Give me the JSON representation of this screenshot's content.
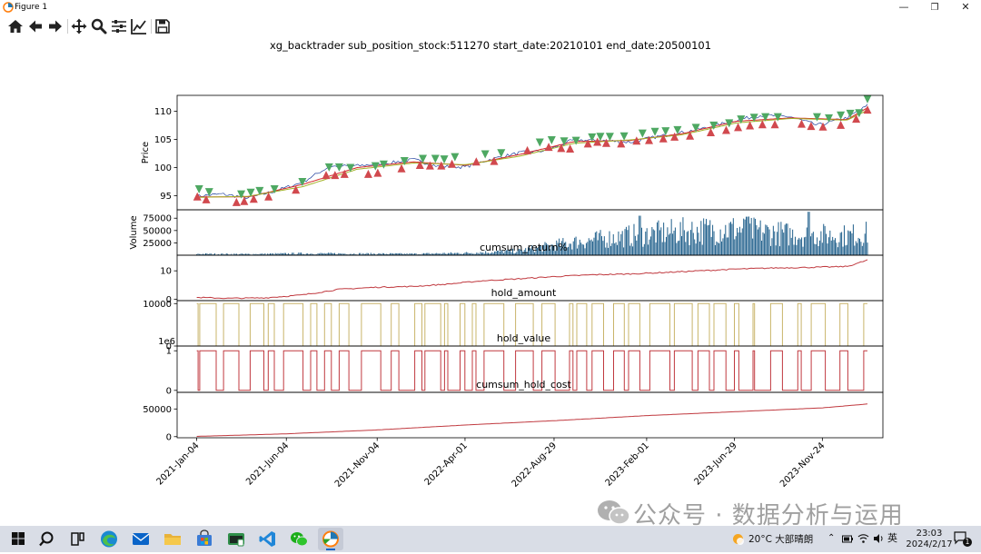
{
  "window": {
    "title": "Figure 1",
    "controls": [
      "minimize-icon",
      "restore-icon",
      "close-icon"
    ]
  },
  "toolbar": {
    "buttons": [
      {
        "name": "home-icon",
        "tooltip": "Reset original view"
      },
      {
        "name": "back-icon",
        "tooltip": "Back to previous view"
      },
      {
        "name": "forward-icon",
        "tooltip": "Forward to next view"
      },
      {
        "name": "pan-icon",
        "tooltip": "Pan axes"
      },
      {
        "name": "zoom-icon",
        "tooltip": "Zoom to rectangle"
      },
      {
        "name": "subplots-icon",
        "tooltip": "Configure subplots"
      },
      {
        "name": "edit-axes-icon",
        "tooltip": "Edit axis, curve and image parameters"
      },
      {
        "name": "save-icon",
        "tooltip": "Save the figure"
      }
    ]
  },
  "figure": {
    "suptitle": "xg_backtrader sub_position_stock:511270 start_date:20210101 end_date:20500101",
    "x_tick_labels": [
      "2021-Jan-04",
      "2021-Jun-04",
      "2021-Nov-04",
      "2022-Apr-01",
      "2022-Aug-29",
      "2023-Feb-01",
      "2023-Jun-29",
      "2023-Nov-24"
    ]
  },
  "chart_data": [
    {
      "type": "line",
      "panel": "price",
      "ylabel": "Price",
      "yticks": [
        95,
        100,
        105,
        110
      ],
      "ylim": [
        92.5,
        112.8
      ],
      "x_range": [
        "2021-01-04",
        "2024-02-08"
      ],
      "series": [
        {
          "role": "close",
          "color": "#1f3f9e",
          "x": [
            "2021-01-04",
            "2021-02-15",
            "2021-04-01",
            "2021-05-15",
            "2021-07-01",
            "2021-08-15",
            "2021-10-01",
            "2021-11-15",
            "2022-01-04",
            "2022-02-15",
            "2022-04-01",
            "2022-05-15",
            "2022-07-01",
            "2022-08-15",
            "2022-10-01",
            "2022-11-15",
            "2023-01-04",
            "2023-02-15",
            "2023-04-01",
            "2023-05-15",
            "2023-07-01",
            "2023-08-15",
            "2023-10-01",
            "2023-11-15",
            "2024-01-04",
            "2024-02-08"
          ],
          "values": [
            94.9,
            95.3,
            94.6,
            95.8,
            97.4,
            100.2,
            100.3,
            100.7,
            101.4,
            100.2,
            100.1,
            101.5,
            102.6,
            103.0,
            104.9,
            104.8,
            104.5,
            105.4,
            106.2,
            107.1,
            108.4,
            109.3,
            109.0,
            107.5,
            108.8,
            111.0
          ]
        },
        {
          "role": "ma_short",
          "color": "#d62728",
          "x": [
            "2021-01-04",
            "2021-04-01",
            "2021-07-01",
            "2021-10-01",
            "2022-01-04",
            "2022-04-01",
            "2022-07-01",
            "2022-10-01",
            "2023-01-04",
            "2023-04-01",
            "2023-07-01",
            "2023-10-01",
            "2024-01-04",
            "2024-02-08"
          ],
          "values": [
            94.8,
            94.8,
            97.0,
            100.0,
            101.0,
            100.4,
            102.3,
            104.6,
            104.8,
            106.0,
            108.2,
            108.8,
            108.5,
            110.6
          ]
        },
        {
          "role": "ma_long",
          "color": "#a5b32a",
          "x": [
            "2021-01-04",
            "2021-04-01",
            "2021-07-01",
            "2021-10-01",
            "2022-01-04",
            "2022-04-01",
            "2022-07-01",
            "2022-10-01",
            "2023-01-04",
            "2023-04-01",
            "2023-07-01",
            "2023-10-01",
            "2024-01-04",
            "2024-02-08"
          ],
          "values": [
            94.7,
            94.9,
            96.6,
            99.7,
            100.8,
            100.5,
            102.0,
            104.3,
            104.9,
            105.8,
            107.9,
            108.7,
            108.4,
            110.2
          ]
        }
      ],
      "markers": [
        {
          "role": "buy",
          "shape": "triangle-up",
          "color": "#d1494e",
          "x": [
            "2021-01-05",
            "2021-01-20",
            "2021-03-12",
            "2021-03-25",
            "2021-04-10",
            "2021-05-05",
            "2021-06-20",
            "2021-08-10",
            "2021-08-25",
            "2021-09-10",
            "2021-10-20",
            "2021-11-05",
            "2021-12-15",
            "2022-01-15",
            "2022-02-01",
            "2022-02-20",
            "2022-03-10",
            "2022-04-20",
            "2022-05-20",
            "2022-07-15",
            "2022-08-20",
            "2022-09-10",
            "2022-09-25",
            "2022-10-25",
            "2022-11-10",
            "2022-11-25",
            "2022-12-20",
            "2023-01-15",
            "2023-02-05",
            "2023-03-01",
            "2023-03-20",
            "2023-04-15",
            "2023-05-20",
            "2023-06-15",
            "2023-07-05",
            "2023-07-25",
            "2023-08-15",
            "2023-09-05",
            "2023-10-20",
            "2023-11-05",
            "2023-11-25",
            "2023-12-25",
            "2024-01-20",
            "2024-02-08"
          ],
          "values": [
            94.8,
            94.3,
            93.8,
            94.0,
            94.4,
            94.8,
            96.0,
            98.6,
            98.6,
            98.8,
            98.8,
            99.0,
            99.8,
            100.4,
            100.3,
            100.3,
            100.6,
            101.0,
            101.1,
            103.0,
            103.6,
            103.4,
            103.3,
            104.2,
            104.5,
            104.3,
            104.2,
            104.7,
            104.8,
            105.1,
            105.4,
            105.6,
            106.2,
            106.6,
            107.1,
            107.4,
            107.6,
            107.6,
            107.7,
            107.3,
            107.2,
            107.5,
            108.6,
            110.2
          ]
        },
        {
          "role": "sell",
          "shape": "triangle-down",
          "color": "#4ea862",
          "x": [
            "2021-01-08",
            "2021-01-25",
            "2021-03-20",
            "2021-04-05",
            "2021-04-20",
            "2021-05-15",
            "2021-07-01",
            "2021-08-15",
            "2021-09-01",
            "2021-09-20",
            "2021-11-01",
            "2021-11-15",
            "2021-12-20",
            "2022-01-20",
            "2022-02-10",
            "2022-02-25",
            "2022-03-15",
            "2022-05-05",
            "2022-06-01",
            "2022-08-05",
            "2022-08-25",
            "2022-09-15",
            "2022-10-05",
            "2022-11-01",
            "2022-11-15",
            "2022-12-01",
            "2022-12-25",
            "2023-01-25",
            "2023-02-15",
            "2023-03-05",
            "2023-03-25",
            "2023-04-25",
            "2023-05-25",
            "2023-06-20",
            "2023-07-10",
            "2023-08-01",
            "2023-08-20",
            "2023-09-10",
            "2023-11-15",
            "2023-12-05",
            "2023-12-25",
            "2024-01-10",
            "2024-01-25",
            "2024-02-08"
          ],
          "values": [
            96.2,
            95.7,
            95.3,
            95.6,
            95.9,
            96.2,
            97.5,
            100.1,
            100.1,
            100.0,
            100.3,
            100.6,
            101.2,
            101.6,
            101.6,
            101.5,
            101.9,
            102.4,
            102.6,
            104.5,
            104.9,
            104.7,
            104.8,
            105.4,
            105.5,
            105.5,
            105.6,
            106.1,
            106.4,
            106.5,
            106.7,
            107.1,
            107.5,
            107.9,
            108.6,
            108.9,
            109.0,
            109.0,
            109.0,
            108.8,
            109.3,
            109.6,
            109.7,
            112.2
          ]
        }
      ]
    },
    {
      "type": "bar",
      "panel": "volume",
      "ylabel": "Volume",
      "yticks": [
        25000,
        50000,
        75000
      ],
      "ylim": [
        0,
        92000
      ],
      "color": "#1f5f8b",
      "x": [
        "2021-01-04",
        "2021-04-01",
        "2021-07-01",
        "2021-10-01",
        "2022-01-04",
        "2022-04-01",
        "2022-07-01",
        "2022-10-01",
        "2023-01-04",
        "2023-04-01",
        "2023-07-01",
        "2023-10-01",
        "2024-01-04",
        "2024-02-08"
      ],
      "values": [
        3000,
        2500,
        4000,
        3500,
        3000,
        5000,
        10000,
        30000,
        45000,
        55000,
        60000,
        48000,
        45000,
        50000
      ],
      "peaks": [
        {
          "x": "2023-11-01",
          "value": 88000
        },
        {
          "x": "2023-01-20",
          "value": 80000
        },
        {
          "x": "2023-07-20",
          "value": 78000
        }
      ]
    },
    {
      "type": "line",
      "panel": "cumsum_return",
      "title": "cumsum_return%",
      "yticks": [
        0,
        10
      ],
      "ylim": [
        -0.5,
        15.5
      ],
      "color": "#c0393f",
      "x": [
        "2021-01-04",
        "2021-03-01",
        "2021-05-01",
        "2021-07-01",
        "2021-09-01",
        "2021-11-01",
        "2022-01-04",
        "2022-03-01",
        "2022-05-01",
        "2022-07-01",
        "2022-09-01",
        "2022-11-01",
        "2023-01-04",
        "2023-03-01",
        "2023-05-01",
        "2023-07-01",
        "2023-09-01",
        "2023-11-01",
        "2024-01-04",
        "2024-02-08"
      ],
      "values": [
        0.6,
        0.3,
        0.5,
        1.5,
        3.5,
        4.2,
        4.5,
        5.3,
        6.5,
        7.2,
        8.0,
        8.6,
        8.9,
        9.4,
        10.0,
        10.6,
        11.0,
        11.2,
        11.5,
        13.8
      ]
    },
    {
      "type": "line",
      "panel": "hold_amount",
      "title": "hold_amount",
      "yticks": [
        0,
        10000
      ],
      "ylim": [
        0,
        10700
      ],
      "color": "#c9b46a",
      "values_min": 0,
      "values_max": 10000
    },
    {
      "type": "line",
      "panel": "hold_value",
      "title": "hold_value",
      "offset_text": "1e6",
      "yticks": [
        0,
        1
      ],
      "ylim": [
        -0.05,
        1.12
      ],
      "color": "#c0393f",
      "values_min": 0,
      "values_max": 1
    },
    {
      "type": "line",
      "panel": "cumsum_hold_cost",
      "title": "cumsum_hold_cost",
      "yticks": [
        0,
        50000
      ],
      "ylim": [
        -2000,
        80000
      ],
      "color": "#c0393f",
      "x": [
        "2021-01-04",
        "2021-06-01",
        "2021-11-01",
        "2022-04-01",
        "2022-09-01",
        "2023-02-01",
        "2023-06-29",
        "2023-11-24",
        "2024-02-08"
      ],
      "values": [
        500,
        5000,
        12000,
        21000,
        29000,
        38000,
        45000,
        52000,
        59000
      ]
    }
  ],
  "watermark": {
    "text": "公众号 · 数据分析与运用"
  },
  "taskbar": {
    "apps": [
      "windows-start-icon",
      "search-icon",
      "task-view-icon",
      "edge-icon",
      "mail-icon",
      "file-explorer-icon",
      "store-icon",
      "terminal-icon",
      "vscode-icon",
      "wechat-icon",
      "python-figure-icon"
    ],
    "weather": "20°C 大部晴朗",
    "ime": "英",
    "time": "23:03",
    "date": "2024/2/17",
    "notification_count": "1"
  }
}
